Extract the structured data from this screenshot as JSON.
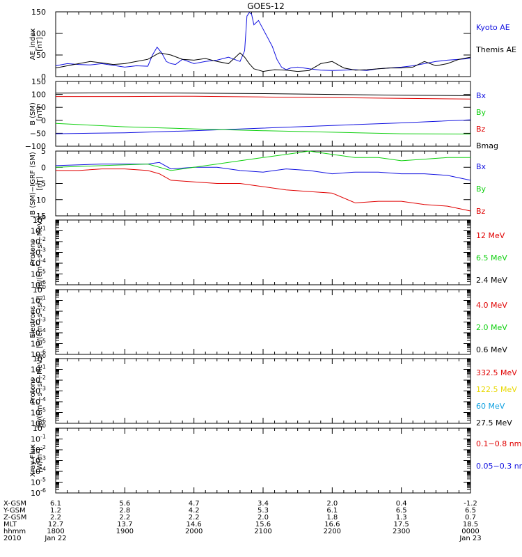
{
  "title": "GOES-12",
  "colors": {
    "black": "#000000",
    "blue": "#1010e0",
    "red": "#e00000",
    "green": "#10d010",
    "yellow": "#e8d800",
    "cyan": "#10a0e0"
  },
  "chart_data": [
    {
      "type": "line",
      "panel": "ae",
      "ylabel_lines": [
        "AE_index",
        "[nT]"
      ],
      "ylim": [
        0,
        150
      ],
      "yticks": [
        {
          "v": 0,
          "t": "0"
        },
        {
          "v": 50,
          "t": "50"
        },
        {
          "v": 100,
          "t": "100"
        },
        {
          "v": 150,
          "t": "150"
        }
      ],
      "legend": [
        {
          "name": "Kyoto AE",
          "color": "blue"
        },
        {
          "name": "Themis AE",
          "color": "black"
        }
      ],
      "series": [
        {
          "name": "Kyoto AE",
          "color": "blue",
          "x": [
            0,
            5,
            10,
            15,
            20,
            25,
            30,
            35,
            40,
            42,
            44,
            46,
            48,
            50,
            52,
            55,
            60,
            65,
            70,
            75,
            80,
            82,
            83,
            84,
            85,
            86,
            88,
            90,
            92,
            94,
            96,
            98,
            100,
            102,
            105,
            110,
            115,
            120,
            125,
            130,
            135,
            140,
            145,
            150,
            155,
            160,
            165,
            170,
            175,
            180
          ],
          "y": [
            25,
            30,
            28,
            27,
            30,
            26,
            22,
            25,
            24,
            50,
            68,
            55,
            35,
            30,
            28,
            40,
            30,
            35,
            38,
            45,
            35,
            60,
            140,
            148,
            145,
            120,
            130,
            110,
            90,
            70,
            40,
            22,
            16,
            20,
            22,
            18,
            15,
            14,
            15,
            16,
            14,
            18,
            20,
            22,
            25,
            30,
            35,
            38,
            40,
            42
          ]
        },
        {
          "name": "Themis AE",
          "color": "black",
          "x": [
            0,
            5,
            10,
            15,
            20,
            25,
            30,
            35,
            40,
            45,
            50,
            55,
            60,
            65,
            70,
            75,
            78,
            80,
            82,
            84,
            86,
            88,
            90,
            95,
            100,
            105,
            110,
            115,
            120,
            125,
            130,
            135,
            140,
            145,
            150,
            155,
            160,
            165,
            170,
            175,
            180
          ],
          "y": [
            20,
            25,
            30,
            35,
            32,
            28,
            30,
            35,
            40,
            55,
            50,
            40,
            38,
            42,
            35,
            30,
            45,
            55,
            45,
            30,
            18,
            15,
            12,
            16,
            15,
            12,
            14,
            30,
            35,
            20,
            15,
            16,
            18,
            20,
            20,
            22,
            35,
            25,
            30,
            40,
            45
          ]
        }
      ]
    },
    {
      "type": "line",
      "panel": "b",
      "ylabel_lines": [
        "B (SM)",
        "[nT]"
      ],
      "ylim": [
        -100,
        150
      ],
      "yticks": [
        {
          "v": -100,
          "t": "−100"
        },
        {
          "v": -50,
          "t": "−50"
        },
        {
          "v": 0,
          "t": "0"
        },
        {
          "v": 50,
          "t": "50"
        },
        {
          "v": 100,
          "t": "100"
        },
        {
          "v": 150,
          "t": "150"
        }
      ],
      "legend": [
        {
          "name": "Bx",
          "color": "blue"
        },
        {
          "name": "By",
          "color": "green"
        },
        {
          "name": "Bz",
          "color": "red"
        },
        {
          "name": "Bmag",
          "color": "black"
        }
      ],
      "series": [
        {
          "name": "Bx",
          "color": "blue",
          "x": [
            0,
            30,
            60,
            90,
            120,
            150,
            180
          ],
          "y": [
            -52,
            -48,
            -40,
            -30,
            -20,
            -10,
            2
          ]
        },
        {
          "name": "By",
          "color": "green",
          "x": [
            0,
            30,
            60,
            90,
            120,
            150,
            180
          ],
          "y": [
            -12,
            -25,
            -33,
            -40,
            -46,
            -52,
            -53
          ]
        },
        {
          "name": "Bz",
          "color": "red",
          "x": [
            0,
            30,
            60,
            90,
            120,
            150,
            180
          ],
          "y": [
            92,
            92,
            93,
            90,
            88,
            85,
            82
          ]
        },
        {
          "name": "Bmag",
          "color": "black",
          "x": [
            0,
            30,
            60,
            90,
            120,
            150,
            180
          ],
          "y": [
            105,
            106,
            105,
            103,
            100,
            97,
            95
          ]
        }
      ]
    },
    {
      "type": "line",
      "panel": "dev",
      "ylabel_lines": [
        "B (SM)−IGRF (SM)",
        "[nT]"
      ],
      "ylim": [
        -15,
        5
      ],
      "yticks": [
        {
          "v": -15,
          "t": "−15"
        },
        {
          "v": -10,
          "t": "−10"
        },
        {
          "v": -5,
          "t": "−5"
        },
        {
          "v": 0,
          "t": "0"
        },
        {
          "v": 5,
          "t": "5"
        }
      ],
      "legend": [
        {
          "name": "Bx",
          "color": "blue"
        },
        {
          "name": "By",
          "color": "green"
        },
        {
          "name": "Bz",
          "color": "red"
        }
      ],
      "series": [
        {
          "name": "Bx",
          "color": "blue",
          "x": [
            0,
            20,
            40,
            45,
            50,
            60,
            70,
            80,
            90,
            100,
            110,
            120,
            130,
            140,
            150,
            160,
            170,
            180
          ],
          "y": [
            0.5,
            1,
            1,
            1.5,
            -0.5,
            0,
            0,
            -1,
            -1.5,
            -0.5,
            -1,
            -2,
            -1.5,
            -1.5,
            -2,
            -2,
            -2.5,
            -4
          ]
        },
        {
          "name": "By",
          "color": "green",
          "x": [
            0,
            20,
            40,
            50,
            60,
            70,
            80,
            90,
            100,
            110,
            120,
            130,
            140,
            150,
            160,
            170,
            180
          ],
          "y": [
            0,
            0.5,
            1,
            -1,
            0,
            1,
            2,
            3,
            4,
            5,
            4,
            3,
            3,
            2,
            2.5,
            3,
            3
          ]
        },
        {
          "name": "Bz",
          "color": "red",
          "x": [
            0,
            10,
            20,
            30,
            40,
            45,
            50,
            60,
            70,
            80,
            90,
            100,
            110,
            120,
            130,
            140,
            150,
            160,
            170,
            180
          ],
          "y": [
            -1,
            -1,
            -0.5,
            -0.5,
            -1,
            -2,
            -4,
            -4.5,
            -5,
            -5,
            -6,
            -7,
            -7.5,
            -8,
            -11,
            -10.5,
            -10.5,
            -11.5,
            -12,
            -13.5
          ]
        }
      ]
    },
    {
      "type": "line",
      "panel": "p1",
      "ylabel_lines": [
        "Protons",
        "[p/(cm²−s−sr−MeV)]"
      ],
      "log": true,
      "ylim": [
        -6,
        0
      ],
      "yticks": [
        {
          "exp": "-6"
        },
        {
          "exp": "-5"
        },
        {
          "exp": "-4"
        },
        {
          "exp": "-3"
        },
        {
          "exp": "-2"
        },
        {
          "exp": "-1"
        },
        {
          "exp": "0"
        }
      ],
      "legend": [
        {
          "name": "12 MeV",
          "color": "red"
        },
        {
          "name": "6.5 MeV",
          "color": "green"
        },
        {
          "name": "2.4 MeV",
          "color": "black"
        }
      ],
      "series": []
    },
    {
      "type": "line",
      "panel": "e",
      "ylabel_lines": [
        "Electrons",
        "[e/(cm²−s−sr)]"
      ],
      "log": true,
      "ylim": [
        -6,
        0
      ],
      "yticks": [
        {
          "exp": "-6"
        },
        {
          "exp": "-5"
        },
        {
          "exp": "-4"
        },
        {
          "exp": "-3"
        },
        {
          "exp": "-2"
        },
        {
          "exp": "-1"
        },
        {
          "exp": "0"
        }
      ],
      "legend": [
        {
          "name": "4.0 MeV",
          "color": "red"
        },
        {
          "name": "2.0 MeV",
          "color": "green"
        },
        {
          "name": "0.6 MeV",
          "color": "black"
        }
      ],
      "series": []
    },
    {
      "type": "line",
      "panel": "p2",
      "ylabel_lines": [
        "Protons",
        "[p/(cm²−s−sr−MeV)]"
      ],
      "log": true,
      "ylim": [
        -6,
        0
      ],
      "yticks": [
        {
          "exp": "-6"
        },
        {
          "exp": "-5"
        },
        {
          "exp": "-4"
        },
        {
          "exp": "-3"
        },
        {
          "exp": "-2"
        },
        {
          "exp": "-1"
        },
        {
          "exp": "0"
        }
      ],
      "legend": [
        {
          "name": "332.5 MeV",
          "color": "red"
        },
        {
          "name": "122.5 MeV",
          "color": "yellow"
        },
        {
          "name": "60 MeV",
          "color": "cyan"
        },
        {
          "name": "27.5 MeV",
          "color": "black"
        }
      ],
      "series": []
    },
    {
      "type": "line",
      "panel": "x",
      "ylabel_lines": [
        "Xray  Flux",
        "[W/m²]"
      ],
      "log": true,
      "ylim": [
        -6,
        0
      ],
      "yticks": [
        {
          "exp": "-6"
        },
        {
          "exp": "-5"
        },
        {
          "exp": "-4"
        },
        {
          "exp": "-3"
        },
        {
          "exp": "-2"
        },
        {
          "exp": "-1"
        },
        {
          "exp": "0"
        }
      ],
      "legend": [
        {
          "name": "0.1−0.8 nm",
          "color": "red"
        },
        {
          "name": "0.05−0.3 nm",
          "color": "blue"
        }
      ],
      "series": []
    }
  ],
  "x_axis_rows": [
    {
      "label": "X-GSM",
      "values": [
        "6.1",
        "5.6",
        "4.7",
        "3.4",
        "2.0",
        "0.4",
        "-1.2"
      ]
    },
    {
      "label": "Y-GSM",
      "values": [
        "1.2",
        "2.8",
        "4.2",
        "5.3",
        "6.1",
        "6.5",
        "6.5"
      ]
    },
    {
      "label": "Z-GSM",
      "values": [
        "2.2",
        "2.2",
        "2.2",
        "2.0",
        "1.8",
        "1.3",
        "0.7"
      ]
    },
    {
      "label": "MLT",
      "values": [
        "12.7",
        "13.7",
        "14.6",
        "15.6",
        "16.6",
        "17.5",
        "18.5"
      ]
    },
    {
      "label": "hhmm",
      "values": [
        "1800",
        "1900",
        "2000",
        "2100",
        "2200",
        "2300",
        "0000"
      ]
    },
    {
      "label": "2010",
      "values": [
        "Jan 22",
        "",
        "",
        "",
        "",
        "",
        "Jan 23"
      ]
    }
  ]
}
